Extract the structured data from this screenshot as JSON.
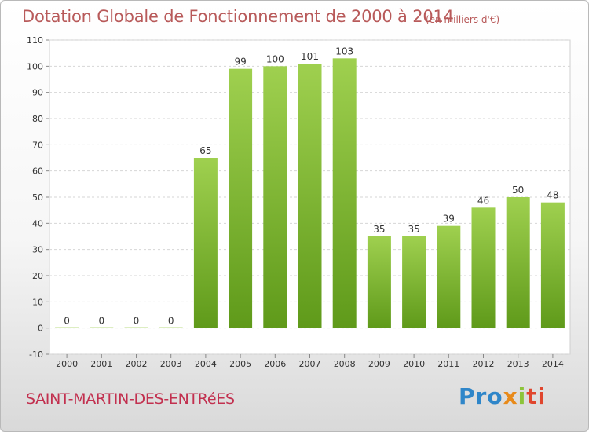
{
  "chart_data": {
    "type": "bar",
    "title": "Dotation Globale de Fonctionnement de 2000 à 2014",
    "unit": "(en milliers d'€)",
    "categories": [
      "2000",
      "2001",
      "2002",
      "2003",
      "2004",
      "2005",
      "2006",
      "2007",
      "2008",
      "2009",
      "2010",
      "2011",
      "2012",
      "2013",
      "2014"
    ],
    "values": [
      0,
      0,
      0,
      0,
      65,
      99,
      100,
      101,
      103,
      35,
      35,
      39,
      46,
      50,
      48
    ],
    "ylim": [
      -10,
      110
    ],
    "yticks": [
      -10,
      0,
      10,
      20,
      30,
      40,
      50,
      60,
      70,
      80,
      90,
      100,
      110
    ],
    "grid": "horizontal dashed",
    "bar_color": "#7fbb36",
    "xlabel": "",
    "ylabel": ""
  },
  "commune": "SAINT-MARTIN-DES-ENTRéES",
  "logo": {
    "parts": [
      "Pro",
      "x",
      "i",
      "ti"
    ]
  }
}
